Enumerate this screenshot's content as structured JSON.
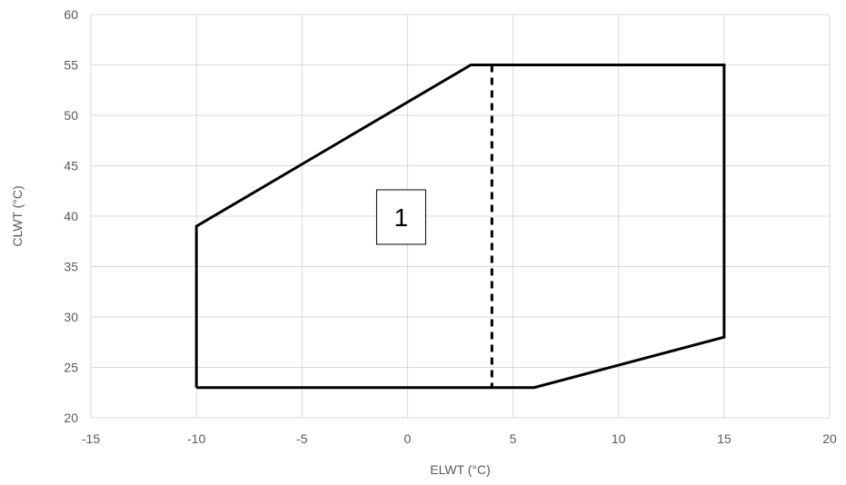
{
  "chart_data": {
    "type": "line",
    "title": "",
    "xlabel": "ELWT (°C)",
    "ylabel": "CLWT (°C)",
    "xlim": [
      -15,
      20
    ],
    "ylim": [
      20,
      60
    ],
    "x_ticks": [
      -15,
      -10,
      -5,
      0,
      5,
      10,
      15,
      20
    ],
    "y_ticks": [
      20,
      25,
      30,
      35,
      40,
      45,
      50,
      55,
      60
    ],
    "grid": true,
    "legend": "none",
    "series": [
      {
        "style": "solid",
        "color": "#000000",
        "points": [
          {
            "x": -10,
            "y": 23
          },
          {
            "x": -10,
            "y": 39
          },
          {
            "x": 3,
            "y": 55
          },
          {
            "x": 15,
            "y": 55
          },
          {
            "x": 15,
            "y": 28
          },
          {
            "x": 6,
            "y": 23
          },
          {
            "x": -10,
            "y": 23
          }
        ]
      },
      {
        "style": "dashed",
        "color": "#000000",
        "points": [
          {
            "x": 4,
            "y": 55
          },
          {
            "x": 4,
            "y": 23
          }
        ]
      }
    ],
    "annotations": [
      {
        "text": "1",
        "x": -0.3,
        "y": 40,
        "boxed": true
      }
    ]
  }
}
